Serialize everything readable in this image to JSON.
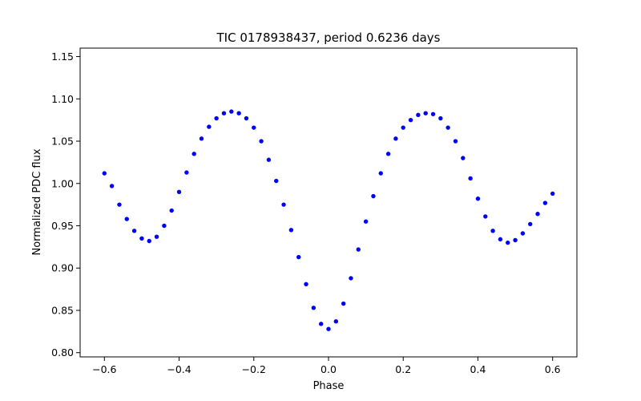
{
  "chart_data": {
    "type": "scatter",
    "title": "TIC 0178938437, period 0.6236 days",
    "xlabel": "Phase",
    "ylabel": "Normalized PDC flux",
    "xlim": [
      -0.665,
      0.665
    ],
    "ylim": [
      0.795,
      1.16
    ],
    "xticks": [
      -0.6,
      -0.4,
      -0.2,
      0.0,
      0.2,
      0.4,
      0.6
    ],
    "xtick_labels": [
      "−0.6",
      "−0.4",
      "−0.2",
      "0.0",
      "0.2",
      "0.4",
      "0.6"
    ],
    "yticks": [
      0.8,
      0.85,
      0.9,
      0.95,
      1.0,
      1.05,
      1.1,
      1.15
    ],
    "ytick_labels": [
      "0.80",
      "0.85",
      "0.90",
      "0.95",
      "1.00",
      "1.05",
      "1.10",
      "1.15"
    ],
    "grid": false,
    "legend": "none",
    "marker_color": "#0000ff",
    "series": [
      {
        "x": [
          -0.6,
          -0.58,
          -0.56,
          -0.54,
          -0.52,
          -0.5,
          -0.48,
          -0.46,
          -0.44,
          -0.42,
          -0.4,
          -0.38,
          -0.36,
          -0.34,
          -0.32,
          -0.3,
          -0.28,
          -0.26,
          -0.24,
          -0.22,
          -0.2,
          -0.18,
          -0.16,
          -0.14,
          -0.12,
          -0.1,
          -0.08,
          -0.06,
          -0.04,
          -0.02,
          0.0,
          0.02,
          0.04,
          0.06,
          0.08,
          0.1,
          0.12,
          0.14,
          0.16,
          0.18,
          0.2,
          0.22,
          0.24,
          0.26,
          0.28,
          0.3,
          0.32,
          0.34,
          0.36,
          0.38,
          0.4,
          0.42,
          0.44,
          0.46,
          0.48,
          0.5,
          0.52,
          0.54,
          0.56,
          0.58,
          0.6
        ],
        "y": [
          1.012,
          0.997,
          0.975,
          0.958,
          0.944,
          0.935,
          0.932,
          0.937,
          0.95,
          0.968,
          0.99,
          1.013,
          1.035,
          1.053,
          1.067,
          1.077,
          1.083,
          1.085,
          1.083,
          1.077,
          1.066,
          1.05,
          1.028,
          1.003,
          0.975,
          0.945,
          0.913,
          0.881,
          0.853,
          0.834,
          0.828,
          0.837,
          0.858,
          0.888,
          0.922,
          0.955,
          0.985,
          1.012,
          1.035,
          1.053,
          1.066,
          1.075,
          1.081,
          1.083,
          1.082,
          1.077,
          1.066,
          1.05,
          1.03,
          1.006,
          0.982,
          0.961,
          0.944,
          0.934,
          0.93,
          0.933,
          0.941,
          0.952,
          0.964,
          0.977,
          0.988
        ]
      }
    ]
  }
}
